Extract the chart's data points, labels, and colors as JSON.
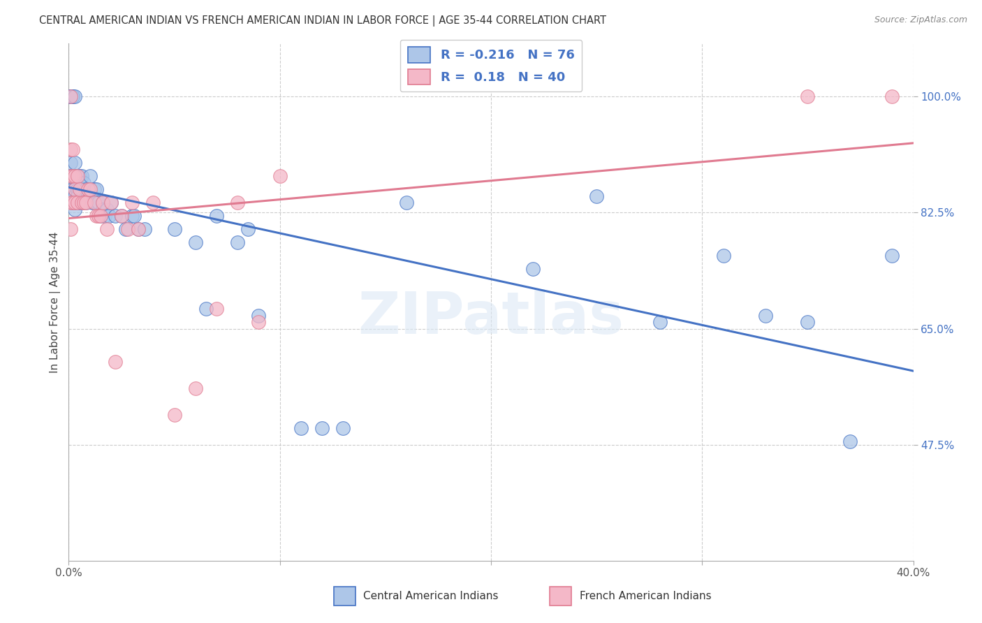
{
  "title": "CENTRAL AMERICAN INDIAN VS FRENCH AMERICAN INDIAN IN LABOR FORCE | AGE 35-44 CORRELATION CHART",
  "source": "Source: ZipAtlas.com",
  "ylabel": "In Labor Force | Age 35-44",
  "xmin": 0.0,
  "xmax": 0.4,
  "ymin": 0.3,
  "ymax": 1.08,
  "blue_R": -0.216,
  "blue_N": 76,
  "pink_R": 0.18,
  "pink_N": 40,
  "blue_color": "#adc6e8",
  "pink_color": "#f4b8c8",
  "blue_line_color": "#4472c4",
  "pink_line_color": "#e07a90",
  "watermark": "ZIPatlas",
  "legend_label_blue": "Central American Indians",
  "legend_label_pink": "French American Indians",
  "ytick_vals": [
    0.475,
    0.65,
    0.825,
    1.0
  ],
  "ytick_labels": [
    "47.5%",
    "65.0%",
    "82.5%",
    "100.0%"
  ],
  "blue_x": [
    0.001,
    0.001,
    0.001,
    0.001,
    0.001,
    0.001,
    0.001,
    0.001,
    0.002,
    0.002,
    0.002,
    0.002,
    0.002,
    0.002,
    0.003,
    0.003,
    0.003,
    0.003,
    0.003,
    0.003,
    0.003,
    0.004,
    0.004,
    0.004,
    0.005,
    0.005,
    0.005,
    0.006,
    0.006,
    0.006,
    0.007,
    0.007,
    0.008,
    0.008,
    0.009,
    0.01,
    0.01,
    0.011,
    0.012,
    0.012,
    0.013,
    0.013,
    0.014,
    0.015,
    0.016,
    0.016,
    0.017,
    0.018,
    0.019,
    0.02,
    0.022,
    0.025,
    0.027,
    0.03,
    0.031,
    0.033,
    0.036,
    0.05,
    0.06,
    0.065,
    0.07,
    0.08,
    0.085,
    0.09,
    0.11,
    0.12,
    0.13,
    0.16,
    0.22,
    0.25,
    0.28,
    0.31,
    0.33,
    0.35,
    0.37,
    0.39
  ],
  "blue_y": [
    1.0,
    1.0,
    1.0,
    1.0,
    1.0,
    0.9,
    0.88,
    0.86,
    1.0,
    1.0,
    0.88,
    0.86,
    0.85,
    0.84,
    1.0,
    0.9,
    0.88,
    0.86,
    0.85,
    0.84,
    0.83,
    0.88,
    0.86,
    0.85,
    0.88,
    0.86,
    0.84,
    0.88,
    0.86,
    0.84,
    0.87,
    0.85,
    0.86,
    0.84,
    0.85,
    0.88,
    0.85,
    0.84,
    0.86,
    0.84,
    0.86,
    0.84,
    0.84,
    0.82,
    0.84,
    0.83,
    0.82,
    0.83,
    0.82,
    0.84,
    0.82,
    0.82,
    0.8,
    0.82,
    0.82,
    0.8,
    0.8,
    0.8,
    0.78,
    0.68,
    0.82,
    0.78,
    0.8,
    0.67,
    0.5,
    0.5,
    0.5,
    0.84,
    0.74,
    0.85,
    0.66,
    0.76,
    0.67,
    0.66,
    0.48,
    0.76
  ],
  "pink_x": [
    0.001,
    0.001,
    0.001,
    0.001,
    0.001,
    0.002,
    0.002,
    0.002,
    0.003,
    0.003,
    0.003,
    0.004,
    0.004,
    0.005,
    0.006,
    0.007,
    0.008,
    0.009,
    0.01,
    0.012,
    0.013,
    0.014,
    0.015,
    0.016,
    0.018,
    0.02,
    0.022,
    0.025,
    0.028,
    0.03,
    0.033,
    0.04,
    0.05,
    0.06,
    0.07,
    0.08,
    0.09,
    0.1,
    0.35,
    0.39
  ],
  "pink_y": [
    1.0,
    0.92,
    0.88,
    0.84,
    0.8,
    0.92,
    0.88,
    0.84,
    0.88,
    0.86,
    0.84,
    0.88,
    0.84,
    0.86,
    0.84,
    0.84,
    0.84,
    0.86,
    0.86,
    0.84,
    0.82,
    0.82,
    0.82,
    0.84,
    0.8,
    0.84,
    0.6,
    0.82,
    0.8,
    0.84,
    0.8,
    0.84,
    0.52,
    0.56,
    0.68,
    0.84,
    0.66,
    0.88,
    1.0,
    1.0
  ]
}
